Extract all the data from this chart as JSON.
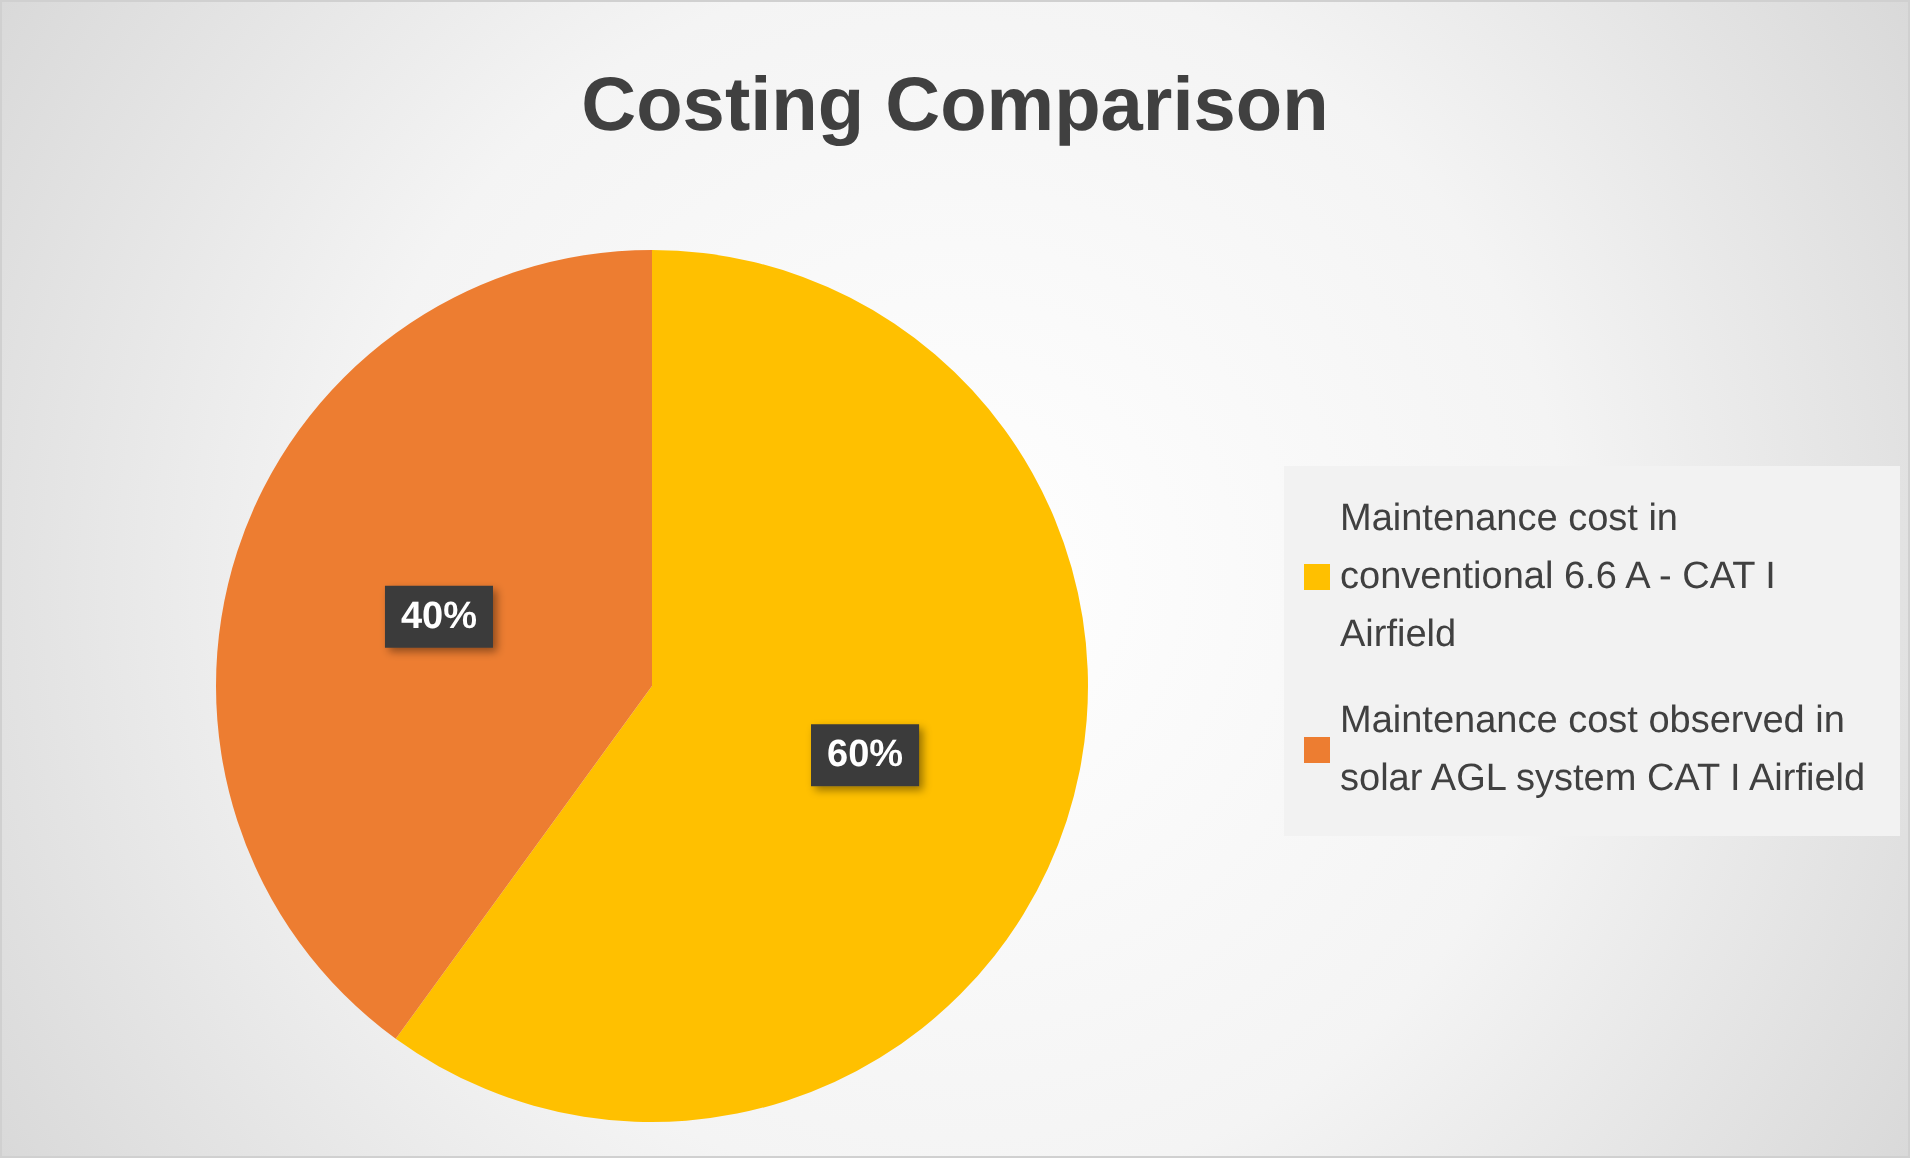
{
  "chart_data": {
    "type": "pie",
    "title": "Costing Comparison",
    "categories": [
      "Maintenance cost in conventional 6.6 A - CAT I Airfield",
      "Maintenance cost observed in solar AGL system CAT I Airfield"
    ],
    "values": [
      60,
      40
    ],
    "colors": [
      "#ffc000",
      "#ed7d31"
    ],
    "value_labels": [
      "60%",
      "40%"
    ],
    "legend": "right"
  }
}
